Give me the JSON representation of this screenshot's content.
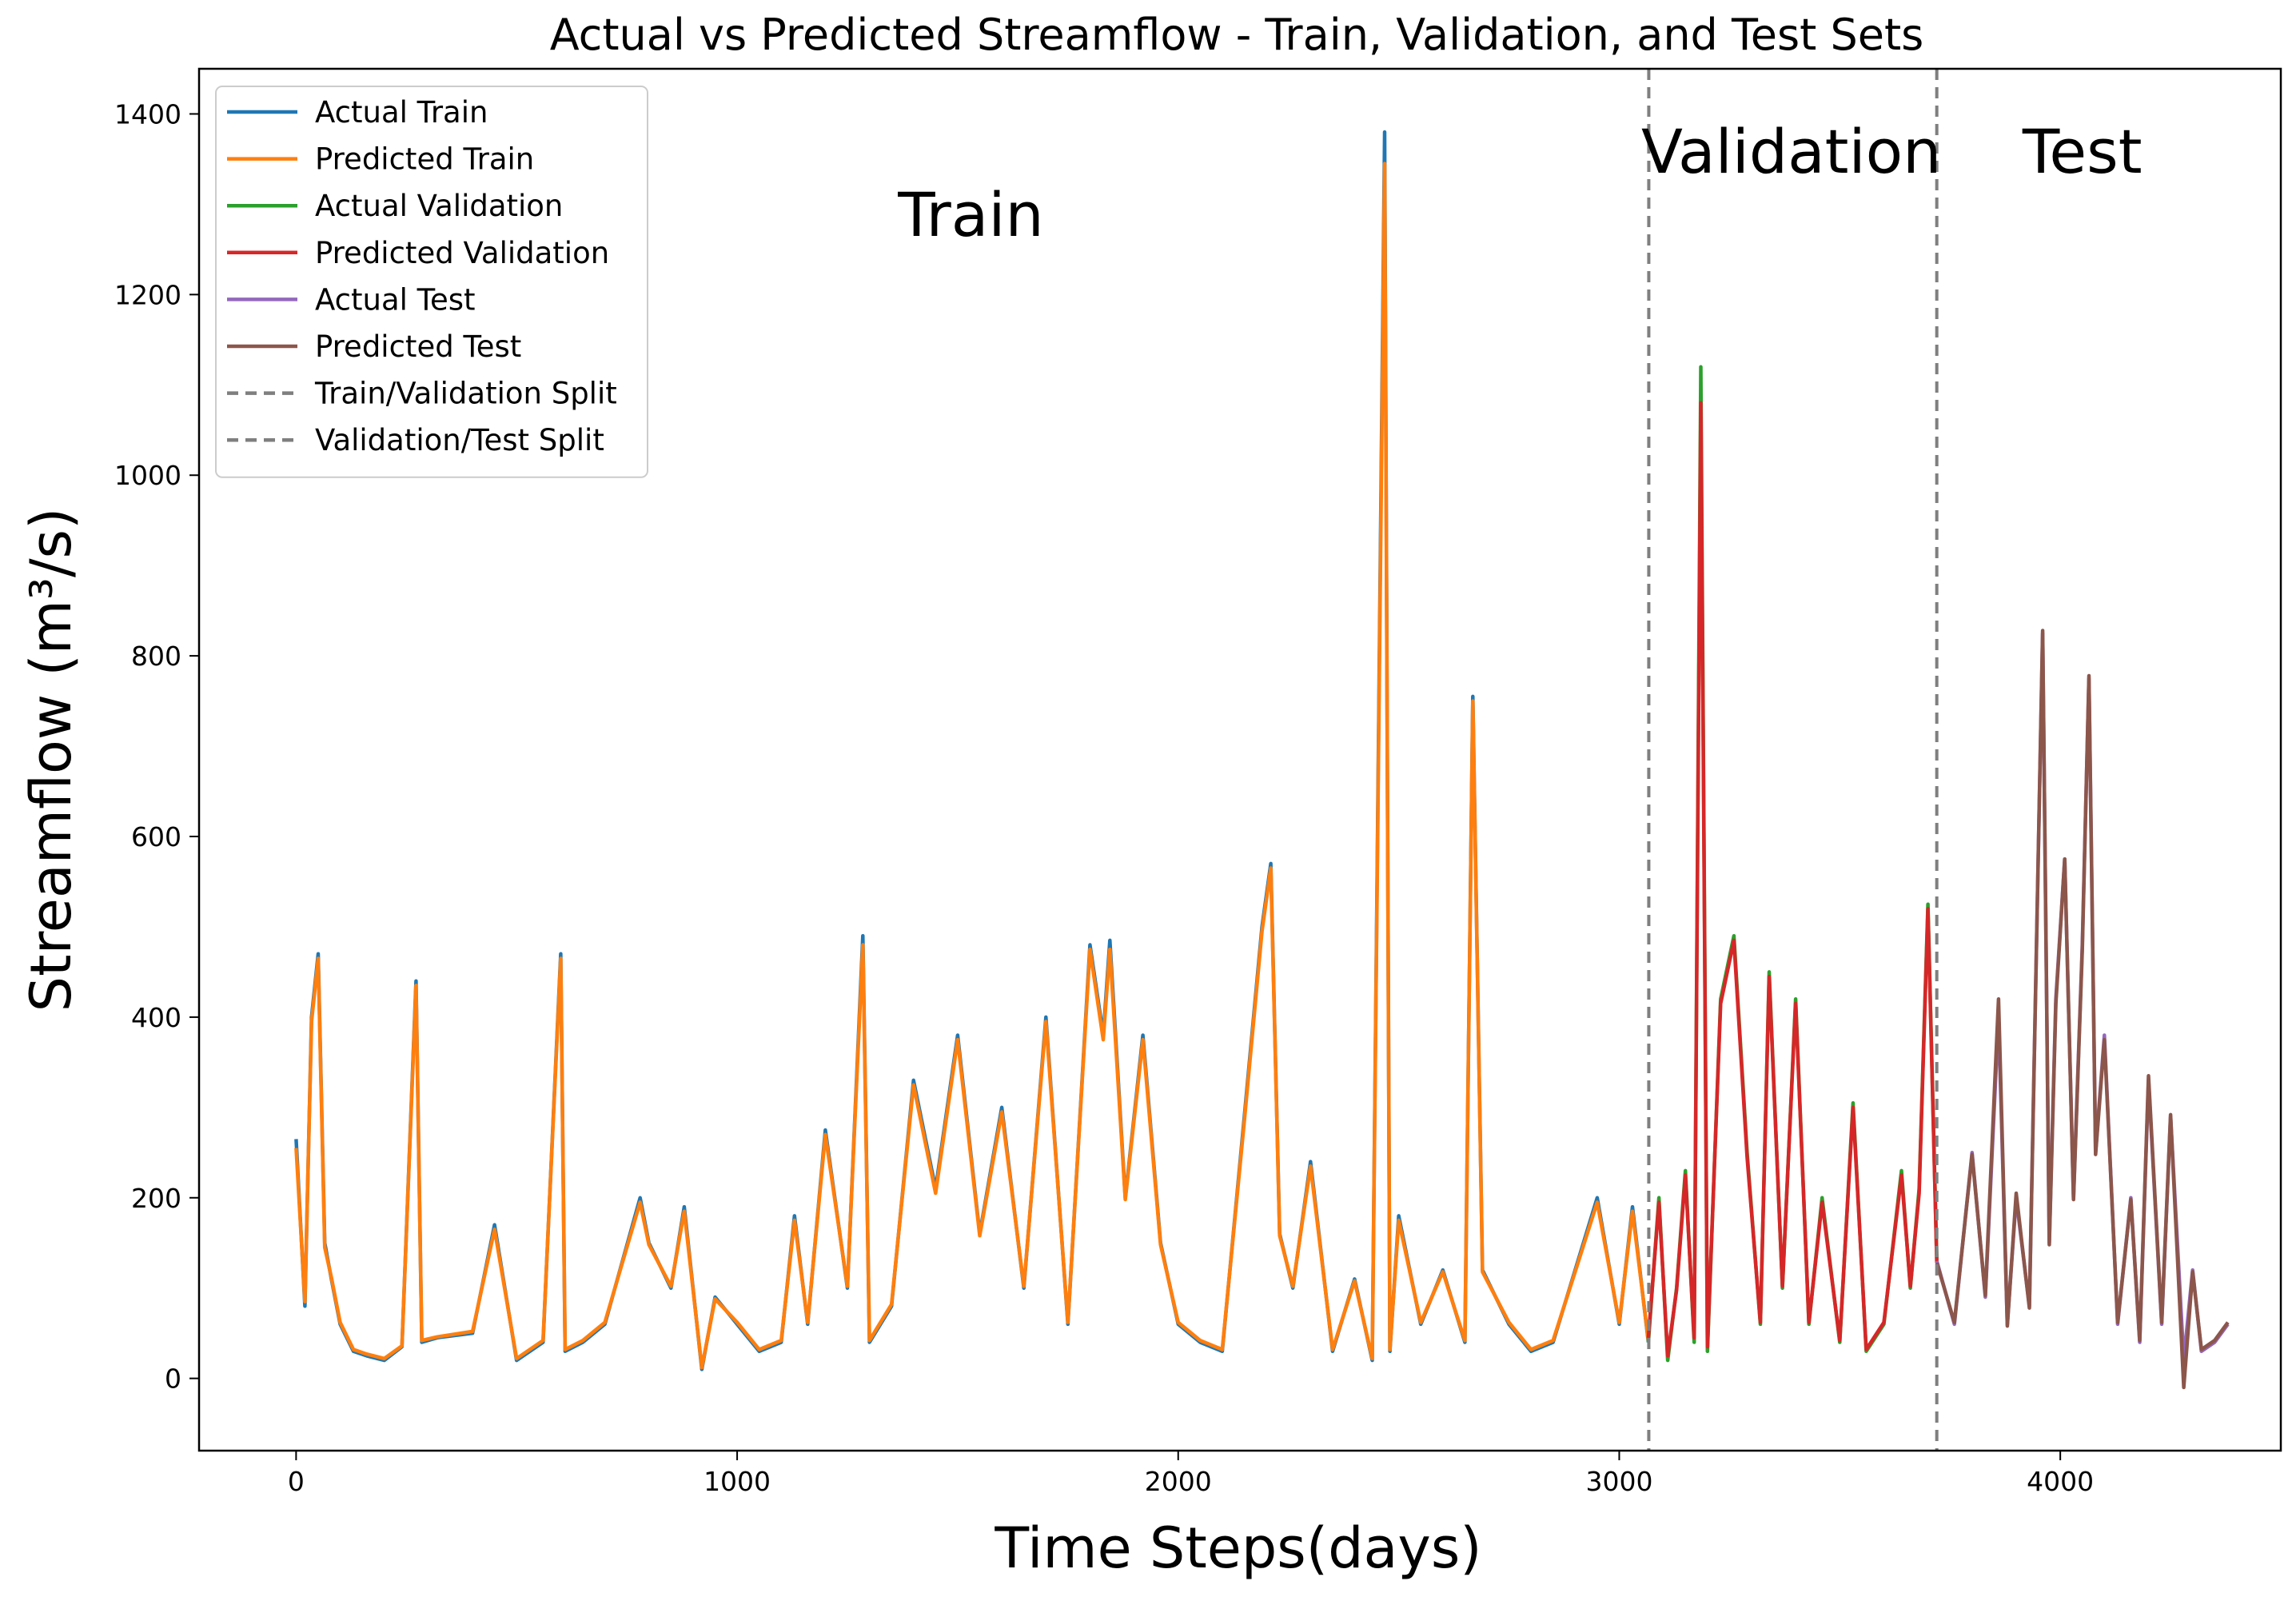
{
  "chart_data": {
    "type": "line",
    "title": "Actual vs Predicted Streamflow - Train, Validation, and Test Sets",
    "xlabel": "Time Steps(days)",
    "ylabel": "Streamflow (m³/s)",
    "xlim": [
      -220,
      4500
    ],
    "ylim": [
      -80,
      1450
    ],
    "xticks": [
      0,
      1000,
      2000,
      3000,
      4000
    ],
    "yticks": [
      0,
      200,
      400,
      600,
      800,
      1000,
      1200,
      1400
    ],
    "grid": false,
    "legend_position": "top-left",
    "region_labels": [
      {
        "text": "Train",
        "x": 1530,
        "y": 1265
      },
      {
        "text": "Validation",
        "x": 3390,
        "y": 1335
      },
      {
        "text": "Test",
        "x": 4050,
        "y": 1335
      }
    ],
    "splits": [
      {
        "name": "Train/Validation Split",
        "x": 3067,
        "color": "#7f7f7f",
        "dash": "dashed"
      },
      {
        "name": "Validation/Test Split",
        "x": 3720,
        "color": "#7f7f7f",
        "dash": "dashed"
      }
    ],
    "series": [
      {
        "name": "Actual Train",
        "color": "#1f77b4",
        "segment": "train",
        "x": [
          0,
          20,
          35,
          50,
          65,
          80,
          100,
          130,
          160,
          200,
          240,
          272,
          285,
          320,
          400,
          450,
          500,
          560,
          600,
          610,
          650,
          700,
          780,
          800,
          850,
          880,
          920,
          950,
          1000,
          1050,
          1100,
          1130,
          1160,
          1200,
          1250,
          1285,
          1300,
          1350,
          1400,
          1450,
          1500,
          1550,
          1600,
          1650,
          1700,
          1750,
          1800,
          1830,
          1845,
          1880,
          1920,
          1960,
          2000,
          2050,
          2100,
          2150,
          2190,
          2210,
          2230,
          2260,
          2300,
          2350,
          2400,
          2440,
          2468,
          2480,
          2500,
          2550,
          2600,
          2650,
          2668,
          2690,
          2750,
          2800,
          2850,
          2900,
          2950,
          3000,
          3030,
          3066
        ],
        "y": [
          265,
          80,
          400,
          470,
          150,
          110,
          60,
          30,
          25,
          20,
          35,
          440,
          40,
          45,
          50,
          170,
          20,
          40,
          470,
          30,
          40,
          60,
          200,
          150,
          100,
          190,
          10,
          90,
          60,
          30,
          40,
          180,
          60,
          275,
          100,
          490,
          40,
          80,
          330,
          210,
          380,
          160,
          300,
          100,
          400,
          60,
          480,
          380,
          485,
          200,
          380,
          150,
          60,
          40,
          30,
          290,
          500,
          570,
          160,
          100,
          240,
          30,
          110,
          20,
          1380,
          30,
          180,
          60,
          120,
          40,
          755,
          120,
          60,
          30,
          40,
          120,
          200,
          60,
          190,
          40
        ]
      },
      {
        "name": "Predicted Train",
        "color": "#ff7f0e",
        "segment": "train",
        "x": [
          0,
          20,
          35,
          50,
          65,
          80,
          100,
          130,
          160,
          200,
          240,
          272,
          285,
          320,
          400,
          450,
          500,
          560,
          600,
          610,
          650,
          700,
          780,
          800,
          850,
          880,
          920,
          950,
          1000,
          1050,
          1100,
          1130,
          1160,
          1200,
          1250,
          1285,
          1300,
          1350,
          1400,
          1450,
          1500,
          1550,
          1600,
          1650,
          1700,
          1750,
          1800,
          1830,
          1845,
          1880,
          1920,
          1960,
          2000,
          2050,
          2100,
          2150,
          2190,
          2210,
          2230,
          2260,
          2300,
          2350,
          2400,
          2440,
          2468,
          2480,
          2500,
          2550,
          2600,
          2650,
          2668,
          2690,
          2750,
          2800,
          2850,
          2900,
          2950,
          3000,
          3030,
          3066
        ],
        "y": [
          255,
          85,
          395,
          465,
          145,
          112,
          62,
          32,
          27,
          22,
          36,
          435,
          42,
          46,
          52,
          165,
          22,
          42,
          465,
          32,
          42,
          62,
          195,
          148,
          102,
          185,
          12,
          88,
          62,
          32,
          42,
          175,
          62,
          270,
          102,
          480,
          42,
          82,
          325,
          205,
          375,
          158,
          295,
          102,
          395,
          62,
          475,
          375,
          475,
          198,
          375,
          148,
          62,
          42,
          32,
          285,
          495,
          565,
          158,
          102,
          235,
          32,
          108,
          22,
          1345,
          32,
          175,
          62,
          118,
          42,
          750,
          118,
          62,
          32,
          42,
          118,
          195,
          62,
          185,
          42
        ]
      },
      {
        "name": "Actual Validation",
        "color": "#2ca02c",
        "segment": "validation",
        "x": [
          3066,
          3090,
          3110,
          3130,
          3150,
          3170,
          3185,
          3200,
          3230,
          3260,
          3290,
          3320,
          3340,
          3370,
          3400,
          3430,
          3460,
          3500,
          3530,
          3560,
          3600,
          3640,
          3660,
          3680,
          3700,
          3720
        ],
        "y": [
          40,
          200,
          20,
          100,
          230,
          40,
          1120,
          30,
          420,
          490,
          250,
          60,
          450,
          100,
          420,
          60,
          200,
          40,
          305,
          30,
          60,
          230,
          100,
          210,
          525,
          130
        ]
      },
      {
        "name": "Predicted Validation",
        "color": "#d62728",
        "segment": "validation",
        "x": [
          3066,
          3090,
          3110,
          3130,
          3150,
          3170,
          3185,
          3200,
          3230,
          3260,
          3290,
          3320,
          3340,
          3370,
          3400,
          3430,
          3460,
          3500,
          3530,
          3560,
          3600,
          3640,
          3660,
          3680,
          3700,
          3720
        ],
        "y": [
          45,
          195,
          25,
          98,
          225,
          45,
          1080,
          35,
          415,
          485,
          245,
          62,
          445,
          102,
          415,
          62,
          195,
          42,
          300,
          32,
          62,
          225,
          102,
          205,
          520,
          128
        ]
      },
      {
        "name": "Actual Test",
        "color": "#9467bd",
        "segment": "test",
        "x": [
          3720,
          3760,
          3800,
          3830,
          3860,
          3880,
          3900,
          3930,
          3960,
          3975,
          3990,
          4010,
          4030,
          4050,
          4065,
          4080,
          4100,
          4130,
          4160,
          4180,
          4200,
          4230,
          4250,
          4280,
          4300,
          4320,
          4350,
          4380
        ],
        "y": [
          130,
          60,
          250,
          90,
          400,
          60,
          200,
          80,
          825,
          150,
          420,
          575,
          200,
          480,
          775,
          250,
          380,
          60,
          200,
          40,
          330,
          60,
          290,
          20,
          120,
          30,
          40,
          60
        ]
      },
      {
        "name": "Predicted Test",
        "color": "#8c564b",
        "segment": "test",
        "x": [
          3720,
          3760,
          3800,
          3830,
          3860,
          3880,
          3900,
          3930,
          3960,
          3975,
          3990,
          4010,
          4030,
          4050,
          4065,
          4080,
          4100,
          4130,
          4160,
          4180,
          4200,
          4230,
          4250,
          4280,
          4300,
          4320,
          4350,
          4380
        ],
        "y": [
          128,
          62,
          248,
          92,
          420,
          58,
          205,
          78,
          828,
          148,
          415,
          575,
          198,
          475,
          778,
          248,
          375,
          62,
          198,
          42,
          335,
          62,
          292,
          -10,
          118,
          32,
          42,
          62
        ]
      }
    ]
  }
}
